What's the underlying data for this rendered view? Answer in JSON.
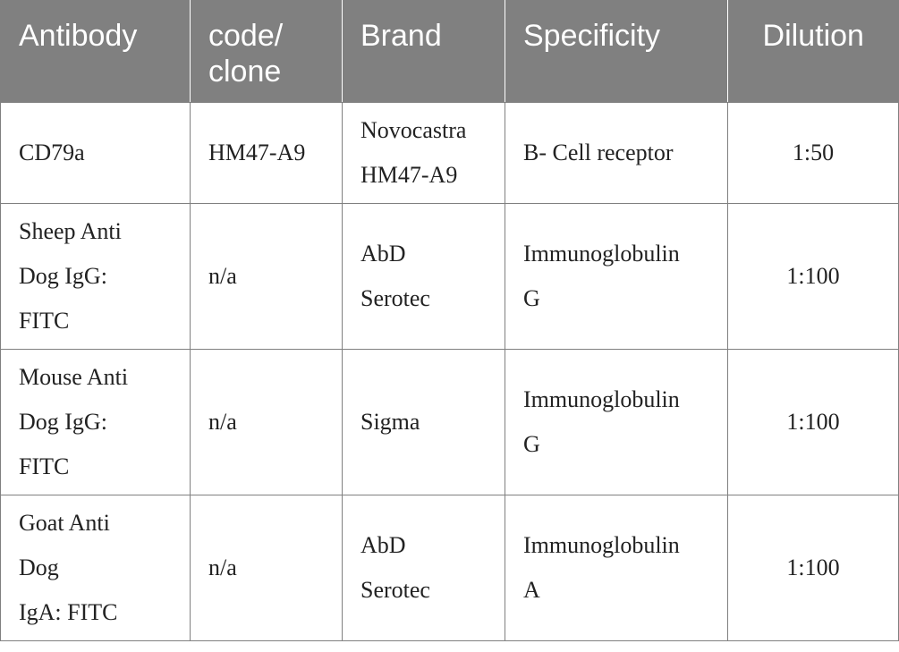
{
  "table": {
    "headers": {
      "antibody": [
        "Antibody"
      ],
      "code": [
        "code/",
        "clone"
      ],
      "brand": [
        "Brand"
      ],
      "specificity": [
        "Specificity"
      ],
      "dilution": [
        "Dilution"
      ]
    },
    "rows": [
      {
        "antibody": [
          "CD79a"
        ],
        "code": [
          "HM47-A9"
        ],
        "brand": [
          "Novocastra",
          "HM47-A9"
        ],
        "specificity": [
          "B- Cell receptor"
        ],
        "dilution": "1:50"
      },
      {
        "antibody": [
          "Sheep Anti",
          "Dog IgG:",
          "FITC"
        ],
        "code": [
          "n/a"
        ],
        "brand": [
          "AbD",
          "Serotec"
        ],
        "specificity": [
          "Immunoglobulin",
          "G"
        ],
        "dilution": "1:100"
      },
      {
        "antibody": [
          "Mouse Anti",
          "Dog IgG:",
          "FITC"
        ],
        "code": [
          "n/a"
        ],
        "brand": [
          "Sigma"
        ],
        "specificity": [
          "Immunoglobulin",
          "G"
        ],
        "dilution": "1:100"
      },
      {
        "antibody": [
          "Goat Anti",
          "Dog",
          "IgA: FITC"
        ],
        "code": [
          "n/a"
        ],
        "brand": [
          "AbD",
          "Serotec"
        ],
        "specificity": [
          "Immunoglobulin",
          "A"
        ],
        "dilution": "1:100"
      }
    ],
    "colors": {
      "header_background": "#808080",
      "header_text": "#ffffff",
      "border": "#808080",
      "body_text": "#222222"
    }
  }
}
